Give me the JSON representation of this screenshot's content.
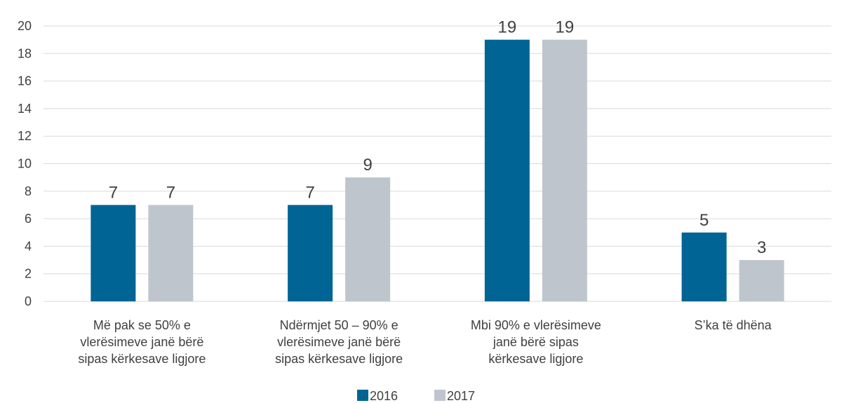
{
  "chart_data": {
    "type": "bar",
    "categories": [
      "Më pak se 50% e\nvlerësimeve janë bërë\nsipas kërkesave ligjore",
      "Ndërmjet 50 – 90% e\nvlerësimeve janë bërë\nsipas kërkesave ligjore",
      "Mbi 90% e vlerësimeve\njanë bërë sipas\nkërkesave ligjore",
      "S’ka të dhëna"
    ],
    "series": [
      {
        "name": "2016",
        "color": "#006494",
        "values": [
          7,
          7,
          19,
          5
        ]
      },
      {
        "name": "2017",
        "color": "#bfc5cc",
        "values": [
          7,
          9,
          19,
          3
        ]
      }
    ],
    "ylim": [
      0,
      20
    ],
    "yticks": [
      0,
      2,
      4,
      6,
      8,
      10,
      12,
      14,
      16,
      18,
      20
    ],
    "grid": true,
    "legend": "bottom"
  }
}
